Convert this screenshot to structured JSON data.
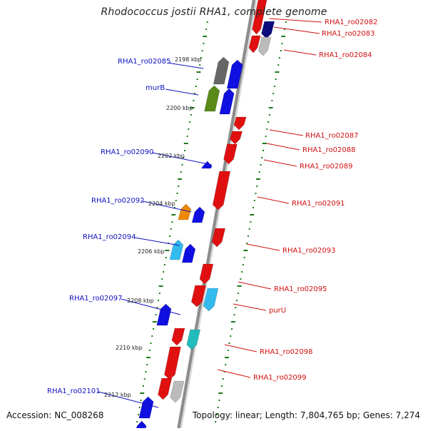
{
  "title": "Rhodococcus jostii RHA1, complete genome",
  "footer": {
    "accession": "Accession: NC_008268",
    "summary": "Topology: linear; Length: 7,804,765 bp; Genes: 7,274"
  },
  "colors": {
    "backbone": "#8c8c8c",
    "tick": "#1a7a1a",
    "label_left": "#1010c0",
    "label_right": "#d01010"
  },
  "scale": {
    "labels": [
      "2198 kbp",
      "2200 kbp",
      "2202 kbp",
      "2204 kbp",
      "2206 kbp",
      "2208 kbp",
      "2210 kbp",
      "2212 kbp"
    ]
  },
  "genes_left": [
    {
      "label": "RHA1_ro02085"
    },
    {
      "label": "murB"
    },
    {
      "label": "RHA1_ro02090"
    },
    {
      "label": "RHA1_ro02092"
    },
    {
      "label": "RHA1_ro02094"
    },
    {
      "label": "RHA1_ro02097"
    },
    {
      "label": "RHA1_ro02101"
    }
  ],
  "genes_right": [
    {
      "label": "RHA1_ro02082"
    },
    {
      "label": "RHA1_ro02083"
    },
    {
      "label": "RHA1_ro02084"
    },
    {
      "label": "RHA1_ro02087"
    },
    {
      "label": "RHA1_ro02088"
    },
    {
      "label": "RHA1_ro02089"
    },
    {
      "label": "RHA1_ro02091"
    },
    {
      "label": "RHA1_ro02093"
    },
    {
      "label": "RHA1_ro02095"
    },
    {
      "label": "purU"
    },
    {
      "label": "RHA1_ro02098"
    },
    {
      "label": "RHA1_ro02099"
    }
  ]
}
